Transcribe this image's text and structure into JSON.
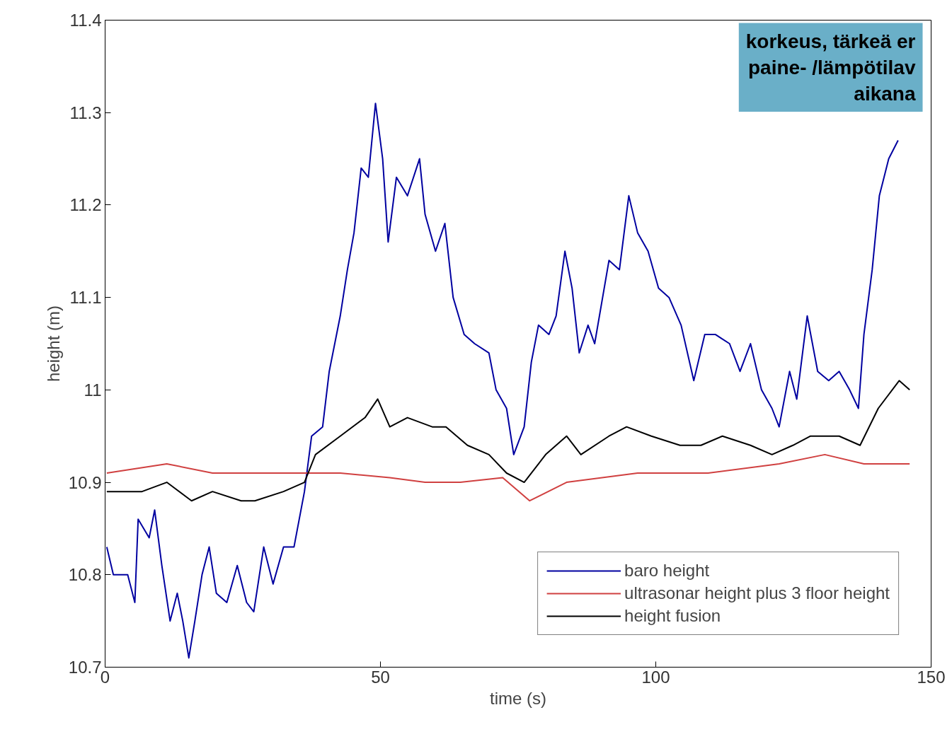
{
  "chart_data": {
    "type": "line",
    "xlabel": "time (s)",
    "ylabel": "height (m)",
    "xlim": [
      0,
      150
    ],
    "ylim": [
      10.7,
      11.4
    ],
    "xticks": [
      0,
      50,
      100,
      150
    ],
    "yticks": [
      10.7,
      10.8,
      10.9,
      11,
      11.1,
      11.2,
      11.3,
      11.4
    ],
    "grid": false,
    "legend": "bottom right",
    "line_style": "solid",
    "marker": "none",
    "annotations": [
      "korkeus, tärkeä er\npaine- /lämpötilav\naikana"
    ],
    "series": [
      {
        "name": "baro height",
        "color": "#0000a0",
        "x": [
          0.3,
          1.5,
          4.1,
          5.4,
          6.0,
          8.0,
          9.0,
          10.3,
          11.8,
          13.1,
          14.1,
          15.2,
          16.3,
          17.6,
          18.9,
          20.2,
          22.1,
          24.0,
          25.7,
          27.0,
          28.8,
          30.5,
          32.4,
          34.3,
          36.2,
          37.5,
          39.5,
          40.7,
          42.7,
          44.0,
          45.2,
          46.5,
          47.8,
          49.1,
          50.4,
          51.4,
          52.9,
          54.9,
          57.1,
          58.1,
          60.0,
          61.7,
          63.2,
          65.2,
          67.1,
          69.7,
          71.0,
          72.9,
          74.2,
          76.1,
          77.4,
          78.7,
          80.6,
          81.9,
          83.5,
          84.8,
          86.1,
          87.7,
          88.9,
          91.5,
          93.4,
          95.1,
          96.7,
          98.6,
          100.5,
          102.4,
          104.6,
          106.9,
          108.9,
          110.8,
          113.4,
          115.3,
          117.2,
          119.2,
          121.1,
          122.4,
          124.3,
          125.6,
          127.5,
          129.4,
          131.4,
          133.3,
          135.2,
          136.8,
          137.8,
          139.3,
          140.6,
          142.3,
          144.0
        ],
        "values": [
          10.83,
          10.8,
          10.8,
          10.77,
          10.86,
          10.84,
          10.87,
          10.81,
          10.75,
          10.78,
          10.75,
          10.71,
          10.75,
          10.8,
          10.83,
          10.78,
          10.77,
          10.81,
          10.77,
          10.76,
          10.83,
          10.79,
          10.83,
          10.83,
          10.89,
          10.95,
          10.96,
          11.02,
          11.08,
          11.13,
          11.17,
          11.24,
          11.23,
          11.31,
          11.25,
          11.16,
          11.23,
          11.21,
          11.25,
          11.19,
          11.15,
          11.18,
          11.1,
          11.06,
          11.05,
          11.04,
          11.0,
          10.98,
          10.93,
          10.96,
          11.03,
          11.07,
          11.06,
          11.08,
          11.15,
          11.11,
          11.04,
          11.07,
          11.05,
          11.14,
          11.13,
          11.21,
          11.17,
          11.15,
          11.11,
          11.1,
          11.07,
          11.01,
          11.06,
          11.06,
          11.05,
          11.02,
          11.05,
          11.0,
          10.98,
          10.96,
          11.02,
          10.99,
          11.08,
          11.02,
          11.01,
          11.02,
          11.0,
          10.98,
          11.06,
          11.13,
          11.21,
          11.25,
          11.27
        ]
      },
      {
        "name": "ultrasonar height plus 3 floor height",
        "color": "#d04040",
        "x": [
          0.3,
          11.2,
          19.5,
          32.4,
          42.7,
          51.7,
          58.1,
          64.5,
          72.2,
          77.1,
          83.8,
          96.7,
          109.5,
          122.4,
          130.7,
          137.8,
          146.1
        ],
        "values": [
          10.91,
          10.92,
          10.91,
          10.91,
          10.91,
          10.905,
          10.9,
          10.9,
          10.905,
          10.88,
          10.9,
          10.91,
          10.91,
          10.92,
          10.93,
          10.92,
          10.92
        ]
      },
      {
        "name": "height fusion",
        "color": "#000000",
        "x": [
          0.3,
          6.7,
          11.2,
          15.7,
          19.5,
          24.7,
          27.2,
          32.4,
          36.2,
          38.2,
          42.7,
          47.2,
          49.5,
          51.7,
          54.9,
          59.4,
          61.9,
          65.8,
          69.7,
          72.9,
          76.1,
          80.0,
          83.8,
          86.4,
          91.5,
          94.7,
          99.2,
          104.4,
          108.2,
          112.1,
          117.2,
          121.1,
          124.9,
          128.1,
          133.3,
          137.1,
          140.4,
          144.2,
          146.1
        ],
        "values": [
          10.89,
          10.89,
          10.9,
          10.88,
          10.89,
          10.88,
          10.88,
          10.89,
          10.9,
          10.93,
          10.95,
          10.97,
          10.99,
          10.96,
          10.97,
          10.96,
          10.96,
          10.94,
          10.93,
          10.91,
          10.9,
          10.93,
          10.95,
          10.93,
          10.95,
          10.96,
          10.95,
          10.94,
          10.94,
          10.95,
          10.94,
          10.93,
          10.94,
          10.95,
          10.95,
          10.94,
          10.98,
          11.01,
          11.0
        ]
      }
    ]
  }
}
